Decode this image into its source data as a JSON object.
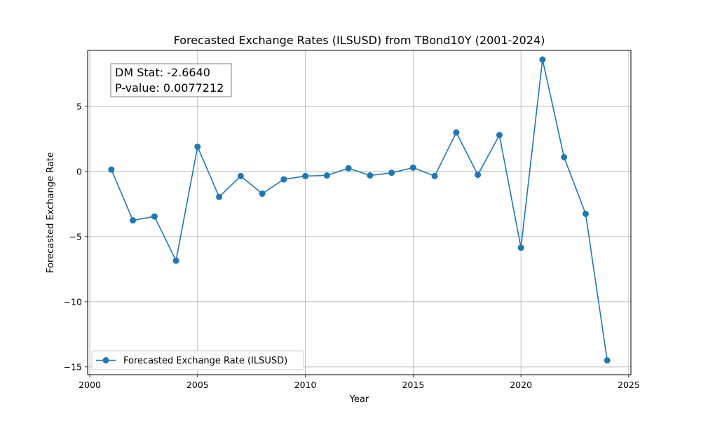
{
  "chart_data": {
    "type": "line",
    "title": "Forecasted Exchange Rates (ILSUSD) from TBond10Y (2001-2024)",
    "xlabel": "Year",
    "ylabel": "Forecasted Exchange Rate",
    "xlim": [
      1999.9,
      2025.1
    ],
    "ylim": [
      -15.6,
      9.3
    ],
    "xticks": [
      2000,
      2005,
      2010,
      2015,
      2020,
      2025
    ],
    "yticks": [
      -15,
      -10,
      -5,
      0,
      5
    ],
    "ytick_labels": [
      "−15",
      "−10",
      "−5",
      "0",
      "5"
    ],
    "grid": true,
    "legend_position": "lower-left",
    "series": [
      {
        "name": "Forecasted Exchange Rate (ILSUSD)",
        "color": "#1f77b4",
        "marker": "circle",
        "x": [
          2001,
          2002,
          2003,
          2004,
          2005,
          2006,
          2007,
          2008,
          2009,
          2010,
          2011,
          2012,
          2013,
          2014,
          2015,
          2016,
          2017,
          2018,
          2019,
          2020,
          2021,
          2022,
          2023,
          2024
        ],
        "y": [
          0.15,
          -3.75,
          -3.45,
          -6.85,
          1.9,
          -1.95,
          -0.35,
          -1.7,
          -0.6,
          -0.35,
          -0.3,
          0.25,
          -0.3,
          -0.1,
          0.3,
          -0.35,
          3.0,
          -0.25,
          2.8,
          -5.85,
          8.6,
          1.1,
          -3.25,
          -14.5
        ]
      }
    ],
    "annotations": [
      {
        "line1": "DM Stat: -2.6640",
        "line2": "P-value: 0.0077212"
      }
    ]
  }
}
